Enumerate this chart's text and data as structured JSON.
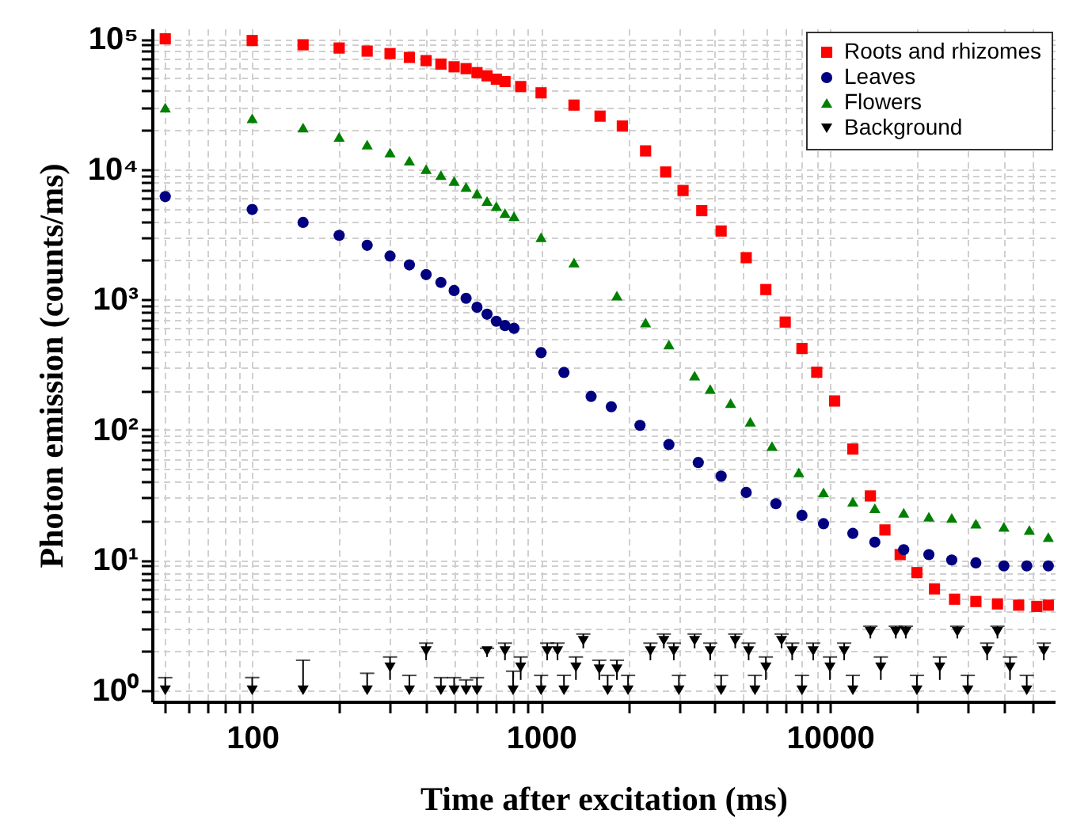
{
  "chart_data": {
    "type": "scatter",
    "xlabel": "Time after excitation (ms)",
    "ylabel": "Photon emission (counts/ms)",
    "log": "xy",
    "grid": true,
    "legend": "top right",
    "xlim": [
      45,
      60000
    ],
    "ylim": [
      0.82,
      120000
    ],
    "xticks": [
      {
        "value": 50,
        "label": null
      },
      {
        "value": 60,
        "label": null
      },
      {
        "value": 70,
        "label": null
      },
      {
        "value": 80,
        "label": null
      },
      {
        "value": 90,
        "label": null
      },
      100,
      {
        "value": 200,
        "label": null
      },
      {
        "value": 300,
        "label": null
      },
      {
        "value": 400,
        "label": null
      },
      {
        "value": 500,
        "label": null
      },
      {
        "value": 600,
        "label": null
      },
      {
        "value": 700,
        "label": null
      },
      {
        "value": 800,
        "label": null
      },
      {
        "value": 900,
        "label": null
      },
      1000,
      {
        "value": 2000,
        "label": null
      },
      {
        "value": 3000,
        "label": null
      },
      {
        "value": 4000,
        "label": null
      },
      {
        "value": 5000,
        "label": null
      },
      {
        "value": 6000,
        "label": null
      },
      {
        "value": 7000,
        "label": null
      },
      {
        "value": 8000,
        "label": null
      },
      {
        "value": 9000,
        "label": null
      },
      10000,
      {
        "value": 20000,
        "label": null
      },
      {
        "value": 30000,
        "label": null
      },
      {
        "value": 40000,
        "label": null
      },
      {
        "value": 50000,
        "label": null
      }
    ],
    "yticks": [
      {
        "value": 1,
        "label": "10⁰"
      },
      {
        "value": 2,
        "label": null
      },
      {
        "value": 3,
        "label": null
      },
      {
        "value": 4,
        "label": null
      },
      {
        "value": 5,
        "label": null
      },
      {
        "value": 6,
        "label": null
      },
      {
        "value": 7,
        "label": null
      },
      {
        "value": 8,
        "label": null
      },
      {
        "value": 9,
        "label": null
      },
      {
        "value": 10,
        "label": "10¹"
      },
      {
        "value": 20,
        "label": null
      },
      {
        "value": 30,
        "label": null
      },
      {
        "value": 40,
        "label": null
      },
      {
        "value": 50,
        "label": null
      },
      {
        "value": 60,
        "label": null
      },
      {
        "value": 70,
        "label": null
      },
      {
        "value": 80,
        "label": null
      },
      {
        "value": 90,
        "label": null
      },
      {
        "value": 100,
        "label": "10²"
      },
      {
        "value": 200,
        "label": null
      },
      {
        "value": 300,
        "label": null
      },
      {
        "value": 400,
        "label": null
      },
      {
        "value": 500,
        "label": null
      },
      {
        "value": 600,
        "label": null
      },
      {
        "value": 700,
        "label": null
      },
      {
        "value": 800,
        "label": null
      },
      {
        "value": 900,
        "label": null
      },
      {
        "value": 1000,
        "label": "10³"
      },
      {
        "value": 2000,
        "label": null
      },
      {
        "value": 3000,
        "label": null
      },
      {
        "value": 4000,
        "label": null
      },
      {
        "value": 5000,
        "label": null
      },
      {
        "value": 6000,
        "label": null
      },
      {
        "value": 7000,
        "label": null
      },
      {
        "value": 8000,
        "label": null
      },
      {
        "value": 9000,
        "label": null
      },
      {
        "value": 10000,
        "label": "10⁴"
      },
      {
        "value": 20000,
        "label": null
      },
      {
        "value": 30000,
        "label": null
      },
      {
        "value": 40000,
        "label": null
      },
      {
        "value": 50000,
        "label": null
      },
      {
        "value": 60000,
        "label": null
      },
      {
        "value": 70000,
        "label": null
      },
      {
        "value": 80000,
        "label": null
      },
      {
        "value": 90000,
        "label": null
      },
      {
        "value": 100000,
        "label": "10⁵"
      }
    ],
    "series": [
      {
        "name": "Roots and rhizomes",
        "color": "#ff0000",
        "marker": "square",
        "x": [
          50,
          100,
          150,
          200,
          250,
          300,
          350,
          400,
          450,
          500,
          550,
          600,
          650,
          700,
          750,
          850,
          1000,
          1300,
          1600,
          1911,
          2300,
          2700,
          3100,
          3600,
          4200,
          5130,
          6000,
          7000,
          8000,
          9000,
          10380,
          12000,
          13800,
          15500,
          17500,
          20000,
          23000,
          27000,
          32000,
          38000,
          45000,
          52000,
          57000
        ],
        "values": [
          100000,
          97000,
          90000,
          85000,
          80500,
          77000,
          72000,
          68000,
          64000,
          61000,
          59000,
          55000,
          52000,
          49000,
          47000,
          43000,
          38500,
          31000,
          25500,
          21400,
          13800,
          9500,
          6850,
          4800,
          3350,
          2090,
          1190,
          670,
          420,
          276,
          166,
          71,
          31,
          17,
          11,
          8,
          6,
          5,
          4.8,
          4.6,
          4.5,
          4.4,
          4.5
        ]
      },
      {
        "name": "Leaves",
        "color": "#000080",
        "marker": "circle",
        "x": [
          50,
          100,
          150,
          200,
          250,
          300,
          350,
          400,
          450,
          500,
          550,
          600,
          650,
          700,
          750,
          806,
          1000,
          1200,
          1490,
          1750,
          2200,
          2770,
          3500,
          4200,
          5130,
          6500,
          8000,
          9500,
          12000,
          14300,
          18000,
          22000,
          26400,
          32000,
          40000,
          48000,
          57000
        ],
        "values": [
          6150,
          4900,
          3900,
          3100,
          2600,
          2150,
          1840,
          1550,
          1350,
          1170,
          1020,
          870,
          770,
          680,
          630,
          600,
          390,
          275,
          180,
          150,
          108,
          77,
          56,
          44,
          33,
          27,
          22,
          19,
          16,
          13.7,
          12,
          11,
          10,
          9.5,
          9,
          9,
          9
        ]
      },
      {
        "name": "Flowers",
        "color": "#008000",
        "marker": "triangle",
        "x": [
          50,
          100,
          150,
          200,
          250,
          300,
          350,
          400,
          450,
          500,
          550,
          600,
          650,
          700,
          750,
          806,
          1000,
          1300,
          1830,
          2300,
          2770,
          3400,
          3850,
          4530,
          5300,
          6300,
          7800,
          9500,
          12000,
          14300,
          18000,
          22000,
          26400,
          32000,
          40000,
          49000,
          57000
        ],
        "values": [
          29700,
          24600,
          20800,
          17700,
          15400,
          13400,
          11600,
          10000,
          9000,
          8100,
          7300,
          6500,
          5700,
          5200,
          4600,
          4350,
          3000,
          1920,
          1070,
          665,
          450,
          260,
          205,
          160,
          115,
          75,
          47,
          33,
          28,
          25,
          23,
          21.5,
          21,
          19,
          18,
          17,
          15
        ]
      },
      {
        "name": "Background",
        "color": "#000000",
        "marker": "triangle-down",
        "x": [
          50,
          100,
          150,
          250,
          300,
          350,
          400,
          450,
          500,
          550,
          600,
          650,
          750,
          800,
          850,
          1000,
          1050,
          1140,
          1200,
          1320,
          1400,
          1590,
          1700,
          1830,
          2000,
          2390,
          2660,
          2880,
          3000,
          3400,
          3850,
          4200,
          4700,
          5230,
          5500,
          6000,
          6800,
          7400,
          8000,
          8750,
          10000,
          11200,
          12000,
          13800,
          15000,
          16900,
          18300,
          20000,
          24000,
          27600,
          30000,
          35000,
          38000,
          42000,
          48000,
          55000
        ],
        "values": [
          1,
          1,
          1,
          1,
          1.5,
          1,
          2,
          1,
          1,
          1,
          1,
          2,
          2,
          1,
          1.5,
          1,
          2,
          2,
          1,
          1.5,
          2.4,
          1.45,
          1,
          1.45,
          1,
          2,
          2.4,
          2,
          1,
          2.4,
          2,
          1,
          2.4,
          2,
          1,
          1.5,
          2.4,
          2,
          1,
          2,
          1.5,
          2,
          1,
          2.8,
          1.5,
          2.8,
          2.8,
          1,
          1.5,
          2.8,
          1,
          2,
          2.8,
          1.5,
          1,
          2
        ],
        "errors": [
          [
            1,
            1.25
          ],
          [
            1,
            1.25
          ],
          [
            1,
            1.7
          ],
          [
            1,
            1.35
          ],
          [
            1.2,
            1.8
          ],
          [
            1,
            1.3
          ],
          [
            1.7,
            2.3
          ],
          [
            1,
            1.25
          ],
          [
            1,
            1.25
          ],
          [
            1,
            1.2
          ],
          [
            1,
            1.25
          ],
          [
            1.8,
            2.1
          ],
          [
            1.7,
            2.3
          ],
          [
            1,
            1.4
          ],
          [
            1.2,
            1.8
          ],
          [
            1,
            1.3
          ],
          [
            1.7,
            2.3
          ],
          [
            1.7,
            2.3
          ],
          [
            1,
            1.3
          ],
          [
            1.2,
            1.8
          ],
          [
            2.1,
            2.7
          ],
          [
            1.2,
            1.7
          ],
          [
            1,
            1.3
          ],
          [
            1.2,
            1.7
          ],
          [
            1,
            1.3
          ],
          [
            1.7,
            2.3
          ],
          [
            2.1,
            2.7
          ],
          [
            1.7,
            2.3
          ],
          [
            1,
            1.3
          ],
          [
            2.1,
            2.7
          ],
          [
            1.7,
            2.3
          ],
          [
            1,
            1.3
          ],
          [
            2.1,
            2.7
          ],
          [
            1.7,
            2.3
          ],
          [
            1,
            1.3
          ],
          [
            1.2,
            1.8
          ],
          [
            2.1,
            2.7
          ],
          [
            1.7,
            2.3
          ],
          [
            1,
            1.3
          ],
          [
            1.7,
            2.3
          ],
          [
            1.2,
            1.8
          ],
          [
            1.7,
            2.3
          ],
          [
            1,
            1.3
          ],
          [
            2.5,
            3.1
          ],
          [
            1.2,
            1.8
          ],
          [
            2.5,
            3.1
          ],
          [
            2.5,
            3.1
          ],
          [
            1,
            1.3
          ],
          [
            1.2,
            1.8
          ],
          [
            2.5,
            3.1
          ],
          [
            1,
            1.3
          ],
          [
            1.7,
            2.3
          ],
          [
            2.5,
            3.1
          ],
          [
            1.2,
            1.8
          ],
          [
            1,
            1.3
          ],
          [
            1.7,
            2.3
          ]
        ]
      }
    ]
  }
}
